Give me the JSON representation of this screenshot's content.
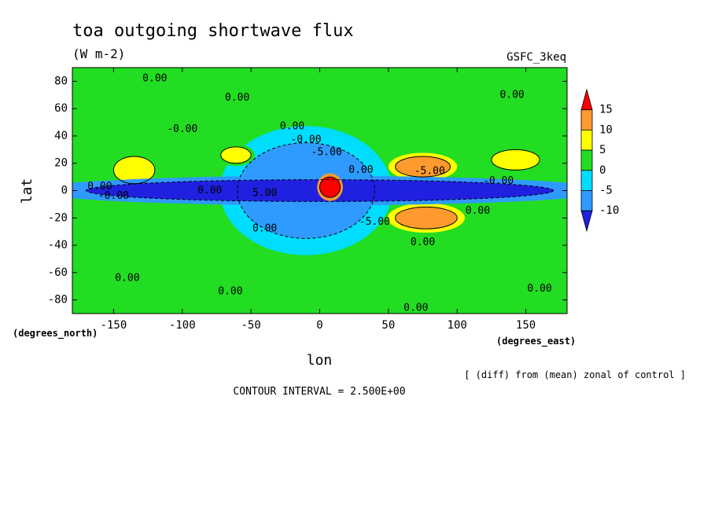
{
  "chart_data": {
    "type": "heatmap",
    "title": "toa outgoing shortwave flux",
    "units": "(W m-2)",
    "model_label": "GSFC_3keq",
    "xlabel": "lon",
    "ylabel": "lat",
    "x_units_label": "(degrees_east)",
    "y_units_label": "(degrees_north)",
    "xlim": [
      -180,
      180
    ],
    "ylim": [
      -90,
      90
    ],
    "x_ticks": [
      {
        "value": -150,
        "label": "-150"
      },
      {
        "value": -100,
        "label": "-100"
      },
      {
        "value": -50,
        "label": "-50"
      },
      {
        "value": 0,
        "label": "0"
      },
      {
        "value": 50,
        "label": "50"
      },
      {
        "value": 100,
        "label": "100"
      },
      {
        "value": 150,
        "label": "150"
      }
    ],
    "y_ticks": [
      {
        "value": 80,
        "label": "80"
      },
      {
        "value": 60,
        "label": "60"
      },
      {
        "value": 40,
        "label": "40"
      },
      {
        "value": 20,
        "label": "20"
      },
      {
        "value": 0,
        "label": "0"
      },
      {
        "value": -20,
        "label": "-20"
      },
      {
        "value": -40,
        "label": "-40"
      },
      {
        "value": -60,
        "label": "-60"
      },
      {
        "value": -80,
        "label": "-80"
      }
    ],
    "colorbar": {
      "labels": [
        "15",
        "10",
        "5",
        "0",
        "-5",
        "-10"
      ],
      "bins": [
        {
          "range": [
            15,
            20
          ],
          "color": "#ff0000"
        },
        {
          "range": [
            10,
            15
          ],
          "color": "#ff9a2e"
        },
        {
          "range": [
            5,
            10
          ],
          "color": "#ffff00"
        },
        {
          "range": [
            0,
            5
          ],
          "color": "#22dd22"
        },
        {
          "range": [
            -5,
            0
          ],
          "color": "#00ddff"
        },
        {
          "range": [
            -10,
            -5
          ],
          "color": "#2f9aff"
        },
        {
          "range": [
            -15,
            -10
          ],
          "color": "#2020e0"
        }
      ]
    },
    "regions": [
      {
        "kind": "positive",
        "lon": [
          0,
          15
        ],
        "lat": [
          -5,
          10
        ],
        "level": 17
      },
      {
        "kind": "positive",
        "lon": [
          55,
          95
        ],
        "lat": [
          10,
          25
        ],
        "level": 10
      },
      {
        "kind": "positive",
        "lon": [
          55,
          100
        ],
        "lat": [
          -28,
          -12
        ],
        "level": 10
      },
      {
        "kind": "positive",
        "lon": [
          125,
          160
        ],
        "lat": [
          15,
          30
        ],
        "level": 7
      },
      {
        "kind": "positive",
        "lon": [
          -150,
          -120
        ],
        "lat": [
          5,
          25
        ],
        "level": 7
      },
      {
        "kind": "positive",
        "lon": [
          -72,
          -50
        ],
        "lat": [
          20,
          32
        ],
        "level": 7
      },
      {
        "kind": "negative",
        "lon": [
          -170,
          170
        ],
        "lat": [
          -8,
          8
        ],
        "level": -12
      },
      {
        "kind": "negative",
        "lon": [
          -60,
          40
        ],
        "lat": [
          -35,
          35
        ],
        "level": -6
      }
    ],
    "contour_labels": [
      {
        "lon": -120,
        "lat": 82,
        "text": "0.00"
      },
      {
        "lon": -60,
        "lat": 68,
        "text": "0.00"
      },
      {
        "lon": 140,
        "lat": 70,
        "text": "0.00"
      },
      {
        "lon": -100,
        "lat": 45,
        "text": "-0.00"
      },
      {
        "lon": -20,
        "lat": 47,
        "text": "0.00"
      },
      {
        "lon": -10,
        "lat": 37,
        "text": "-0.00"
      },
      {
        "lon": 5,
        "lat": 28,
        "text": "-5.00"
      },
      {
        "lon": 30,
        "lat": 15,
        "text": "0.00"
      },
      {
        "lon": 80,
        "lat": 14,
        "text": "-5.00"
      },
      {
        "lon": 130,
        "lat": 7,
        "text": "-0.00"
      },
      {
        "lon": -160,
        "lat": 3,
        "text": "0.00"
      },
      {
        "lon": -150,
        "lat": -4,
        "text": "-0.00"
      },
      {
        "lon": -80,
        "lat": 0,
        "text": "0.00"
      },
      {
        "lon": -40,
        "lat": -2,
        "text": "5.00"
      },
      {
        "lon": 115,
        "lat": -15,
        "text": "0.00"
      },
      {
        "lon": 40,
        "lat": -23,
        "text": "-5.00"
      },
      {
        "lon": -40,
        "lat": -28,
        "text": "0.00"
      },
      {
        "lon": 75,
        "lat": -38,
        "text": "0.00"
      },
      {
        "lon": -140,
        "lat": -64,
        "text": "0.00"
      },
      {
        "lon": -65,
        "lat": -74,
        "text": "0.00"
      },
      {
        "lon": 160,
        "lat": -72,
        "text": "0.00"
      },
      {
        "lon": 70,
        "lat": -86,
        "text": "0.00"
      }
    ]
  },
  "footer": {
    "comparison": "[ (diff) from (mean) zonal of control ]",
    "contour_interval": "CONTOUR INTERVAL = 2.500E+00"
  }
}
